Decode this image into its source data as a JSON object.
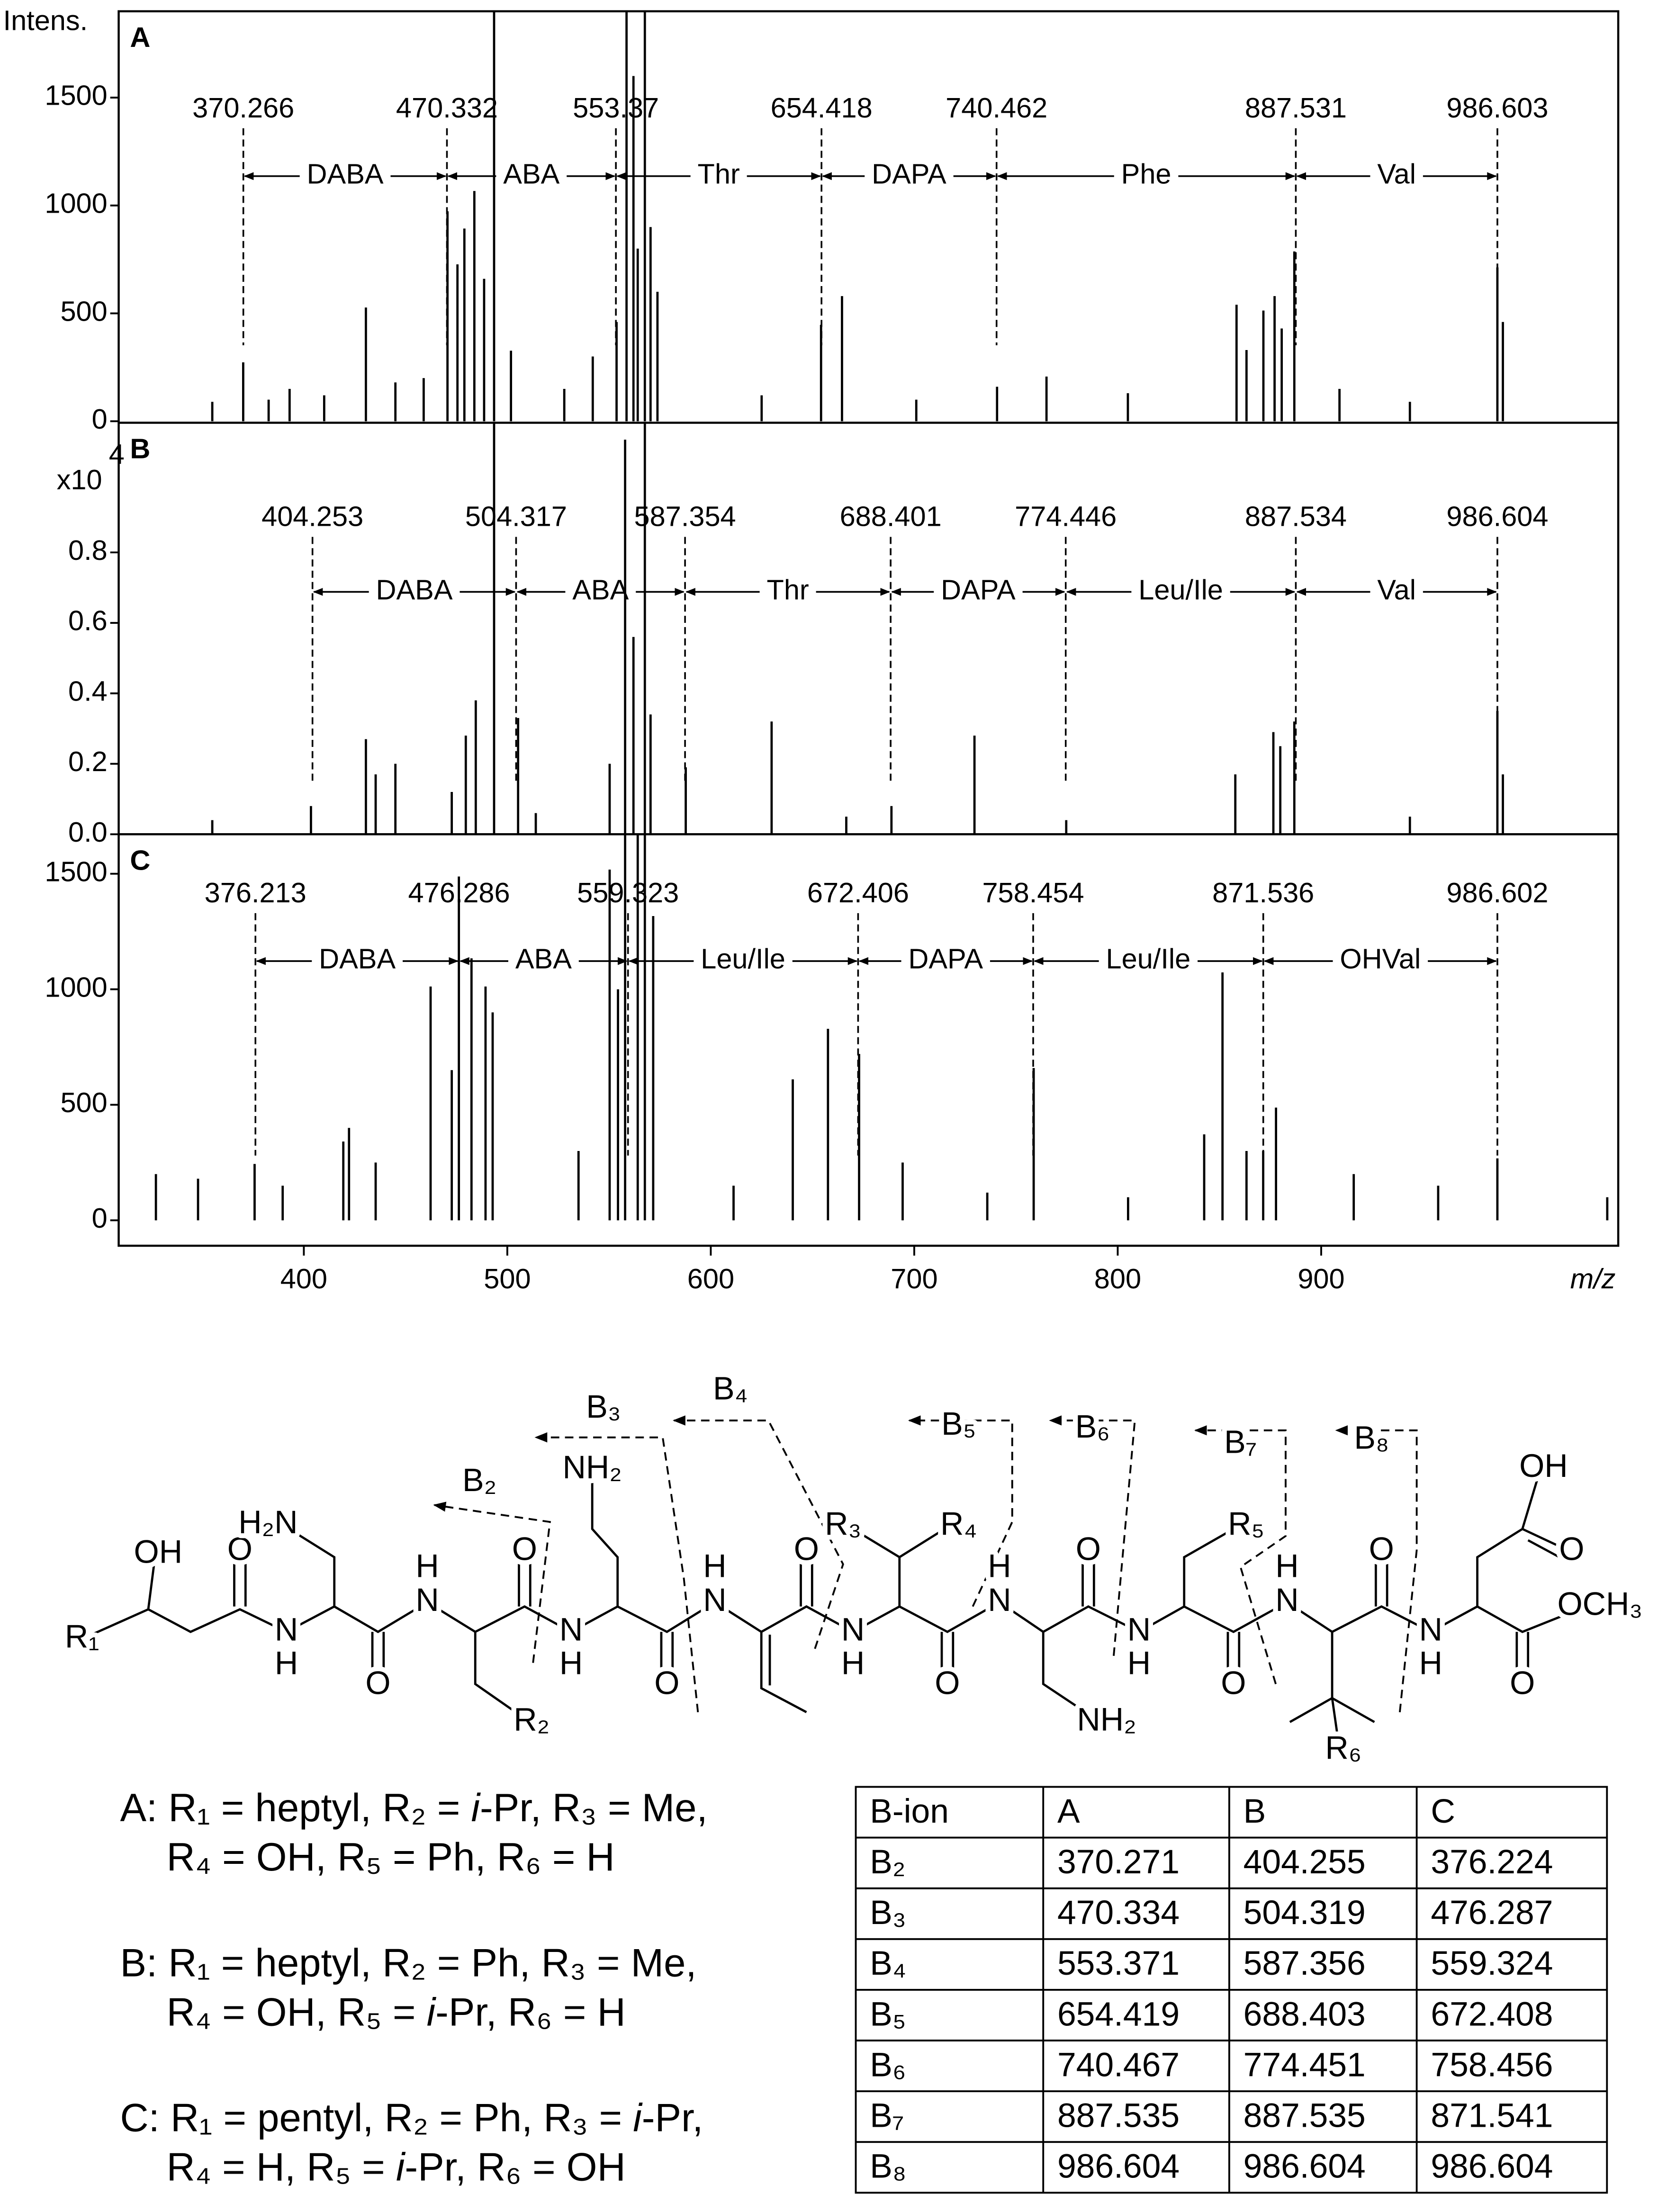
{
  "chart_data": [
    {
      "type": "spectrum",
      "panel": "A",
      "y_label": "Intens.",
      "color": "#000000",
      "xlim": [
        309,
        1046
      ],
      "ylim": [
        -7,
        1900
      ],
      "yticks": [
        0,
        500,
        1000,
        1500
      ],
      "x": [
        355,
        370.2,
        382.7,
        393,
        410,
        430.5,
        445,
        458.9,
        470.6,
        475.5,
        478.9,
        483.8,
        488.6,
        493.5,
        501.8,
        528,
        542,
        553.7,
        558.6,
        562,
        564.1,
        567.6,
        570.4,
        573.8,
        625,
        654.2,
        664.5,
        701,
        740.7,
        765,
        805,
        858.4,
        863.3,
        871.6,
        877.1,
        880.6,
        886.8,
        909,
        943.6,
        986.6,
        989.3
      ],
      "values": [
        90,
        273,
        100,
        150,
        120,
        527,
        180,
        200,
        973,
        727,
        893,
        1067,
        660,
        2100,
        327,
        150,
        300,
        460,
        2200,
        1600,
        800,
        3500,
        900,
        600,
        120,
        447,
        580,
        100,
        160,
        207,
        130,
        540,
        330,
        513,
        580,
        430,
        787,
        150,
        90,
        713,
        460
      ],
      "annotations": [
        370.266,
        470.332,
        553.37,
        654.418,
        740.462,
        887.531,
        986.603
      ],
      "segments": [
        "DABA",
        "ABA",
        "Thr",
        "DAPA",
        "Phe",
        "Val"
      ]
    },
    {
      "type": "spectrum",
      "panel": "B",
      "y_label": "x10",
      "y_exponent": "4",
      "color": "#000000",
      "xlim": [
        309,
        1046
      ],
      "ylim": [
        0,
        1.168
      ],
      "yticks": [
        {
          "value": 0,
          "label": "0.0"
        },
        0.2,
        0.4,
        0.6,
        0.8
      ],
      "x": [
        355,
        403.5,
        430.5,
        435.3,
        445,
        472.7,
        479.6,
        484.5,
        493.5,
        505.3,
        514,
        550.3,
        557.9,
        562,
        567.6,
        570.4,
        587.7,
        629.9,
        666.6,
        688.8,
        729.6,
        774.7,
        857.8,
        876.5,
        879.9,
        886.8,
        943.6,
        986.6,
        989.3
      ],
      "values": [
        0.04,
        0.08,
        0.27,
        0.17,
        0.2,
        0.12,
        0.28,
        0.38,
        1.3,
        0.33,
        0.06,
        0.2,
        1.12,
        0.56,
        1.6,
        0.34,
        0.19,
        0.32,
        0.05,
        0.08,
        0.28,
        0.04,
        0.17,
        0.29,
        0.25,
        0.32,
        0.05,
        0.35,
        0.17
      ],
      "annotations": [
        404.253,
        504.317,
        587.354,
        688.401,
        774.446,
        887.534,
        986.604
      ],
      "segments": [
        "DABA",
        "ABA",
        "Thr",
        "DAPA",
        "Leu/Ile",
        "Val"
      ]
    },
    {
      "type": "spectrum",
      "panel": "C",
      "x_label": "m/z",
      "color": "#000000",
      "xlim": [
        309,
        1046
      ],
      "ylim": [
        -110,
        1671
      ],
      "yticks": [
        0,
        500,
        1000,
        1500
      ],
      "xticks": [
        400,
        500,
        600,
        700,
        800,
        900
      ],
      "x": [
        327.3,
        348,
        375.8,
        389.6,
        419.4,
        422.2,
        435.3,
        462.3,
        472.7,
        476.2,
        482.4,
        489.3,
        492.8,
        535,
        550.3,
        554.4,
        557.9,
        564.1,
        567.6,
        571.7,
        611.2,
        640.3,
        657.6,
        672.9,
        694.3,
        735.9,
        758.7,
        805.1,
        842.5,
        851.5,
        863.3,
        871.5,
        877.8,
        916,
        957.5,
        986.6,
        1040.6
      ],
      "values": [
        200,
        180,
        244,
        150,
        341,
        400,
        250,
        1012,
        650,
        1488,
        1134,
        1012,
        900,
        300,
        1518,
        1000,
        2000,
        1900,
        2500,
        1317,
        150,
        610,
        829,
        720,
        250,
        120,
        659,
        100,
        372,
        1073,
        300,
        300,
        488,
        200,
        150,
        268,
        100
      ],
      "annotations": [
        376.213,
        476.286,
        559.323,
        672.406,
        758.454,
        871.536,
        986.602
      ],
      "segments": [
        "DABA",
        "ABA",
        "Leu/Ile",
        "DAPA",
        "Leu/Ile",
        "OHVal"
      ]
    }
  ],
  "structure": {
    "atoms": [
      "R₁",
      "OH",
      "O",
      "H₂N",
      "N",
      "H",
      "H",
      "N",
      "O",
      "R₂",
      "O",
      "NH₂",
      "N",
      "H",
      "O",
      "H",
      "N",
      "O",
      "R₃",
      "R₄",
      "N",
      "H",
      "O",
      "H",
      "N",
      "O",
      "NH₂",
      "N",
      "H",
      "O",
      "R₅",
      "H",
      "N",
      "O",
      "R₆",
      "OH",
      "O",
      "N",
      "H",
      "O",
      "OCH₃"
    ],
    "fragments": [
      "B₂",
      "B₃",
      "B₄",
      "B₅",
      "B₆",
      "B₇",
      "B₈"
    ]
  },
  "legend": [
    "A: R₁ = heptyl, R₂ = i-Pr, R₃ = Me,",
    "R₄ = OH, R₅ = Ph, R₆ = H",
    "B: R₁ = heptyl, R₂ = Ph, R₃ = Me,",
    "R₄ = OH, R₅ = i-Pr, R₆ = H",
    "C: R₁ = pentyl, R₂ = Ph, R₃ = i-Pr,",
    "R₄ = H, R₅ = i-Pr, R₆ = OH"
  ],
  "table": {
    "header": [
      "B-ion",
      "A",
      "B",
      "C"
    ],
    "rows": [
      [
        "B₂",
        370.271,
        404.255,
        376.224
      ],
      [
        "B₃",
        470.334,
        504.319,
        476.287
      ],
      [
        "B₄",
        553.371,
        587.356,
        559.324
      ],
      [
        "B₅",
        654.419,
        688.403,
        672.408
      ],
      [
        "B₆",
        740.467,
        774.451,
        758.456
      ],
      [
        "B₇",
        887.535,
        887.535,
        871.541
      ],
      [
        "B₈",
        986.604,
        986.604,
        986.604
      ]
    ]
  }
}
